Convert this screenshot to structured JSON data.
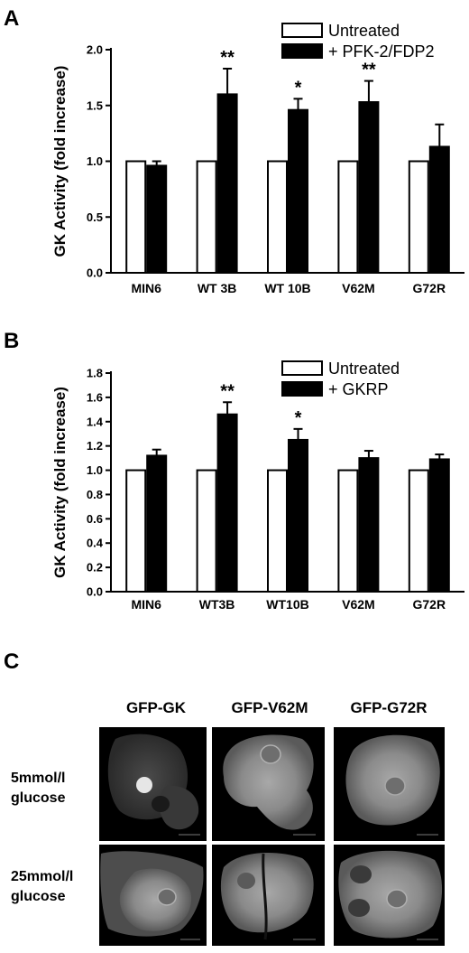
{
  "panels": {
    "A": "A",
    "B": "B",
    "C": "C"
  },
  "chart_data": [
    {
      "type": "bar",
      "panel": "A",
      "ylabel": "GK Activity (fold increase)",
      "xlabel": "",
      "ylim": [
        0,
        2.0
      ],
      "yticks": [
        "0.0",
        "0.5",
        "1.0",
        "1.5",
        "2.0"
      ],
      "ytick_values": [
        0,
        0.5,
        1.0,
        1.5,
        2.0
      ],
      "categories": [
        "MIN6",
        "WT 3B",
        "WT 10B",
        "V62M",
        "G72R"
      ],
      "series": [
        {
          "name": "Untreated",
          "fill": "#ffffff",
          "values": [
            1.0,
            1.0,
            1.0,
            1.0,
            1.0
          ],
          "errors": [
            0,
            0,
            0,
            0,
            0
          ]
        },
        {
          "name": "+ PFK-2/FDP2",
          "fill": "#000000",
          "values": [
            0.96,
            1.6,
            1.46,
            1.53,
            1.13
          ],
          "errors": [
            0.04,
            0.23,
            0.1,
            0.19,
            0.2
          ]
        }
      ],
      "annotations": [
        "",
        "**",
        "*",
        "**",
        ""
      ],
      "legend_position": "top-right",
      "grid": false
    },
    {
      "type": "bar",
      "panel": "B",
      "ylabel": "GK Activity (fold increase)",
      "xlabel": "",
      "ylim": [
        0,
        1.8
      ],
      "yticks": [
        "0.0",
        "0.2",
        "0.4",
        "0.6",
        "0.8",
        "1.0",
        "1.2",
        "1.4",
        "1.6",
        "1.8"
      ],
      "ytick_values": [
        0,
        0.2,
        0.4,
        0.6,
        0.8,
        1.0,
        1.2,
        1.4,
        1.6,
        1.8
      ],
      "categories": [
        "MIN6",
        "WT3B",
        "WT10B",
        "V62M",
        "G72R"
      ],
      "series": [
        {
          "name": "Untreated",
          "fill": "#ffffff",
          "values": [
            1.0,
            1.0,
            1.0,
            1.0,
            1.0
          ],
          "errors": [
            0,
            0,
            0,
            0,
            0
          ]
        },
        {
          "name": "+ GKRP",
          "fill": "#000000",
          "values": [
            1.12,
            1.46,
            1.25,
            1.1,
            1.09
          ],
          "errors": [
            0.05,
            0.1,
            0.09,
            0.06,
            0.04
          ]
        }
      ],
      "annotations": [
        "",
        "**",
        "*",
        "",
        ""
      ],
      "legend_position": "top-right",
      "grid": false
    }
  ],
  "micrographs": {
    "columns": [
      "GFP-GK",
      "GFP-V62M",
      "GFP-G72R"
    ],
    "rows": [
      {
        "line1": "5mmol/l",
        "line2": "glucose"
      },
      {
        "line1": "25mmol/l",
        "line2": "glucose"
      }
    ]
  }
}
